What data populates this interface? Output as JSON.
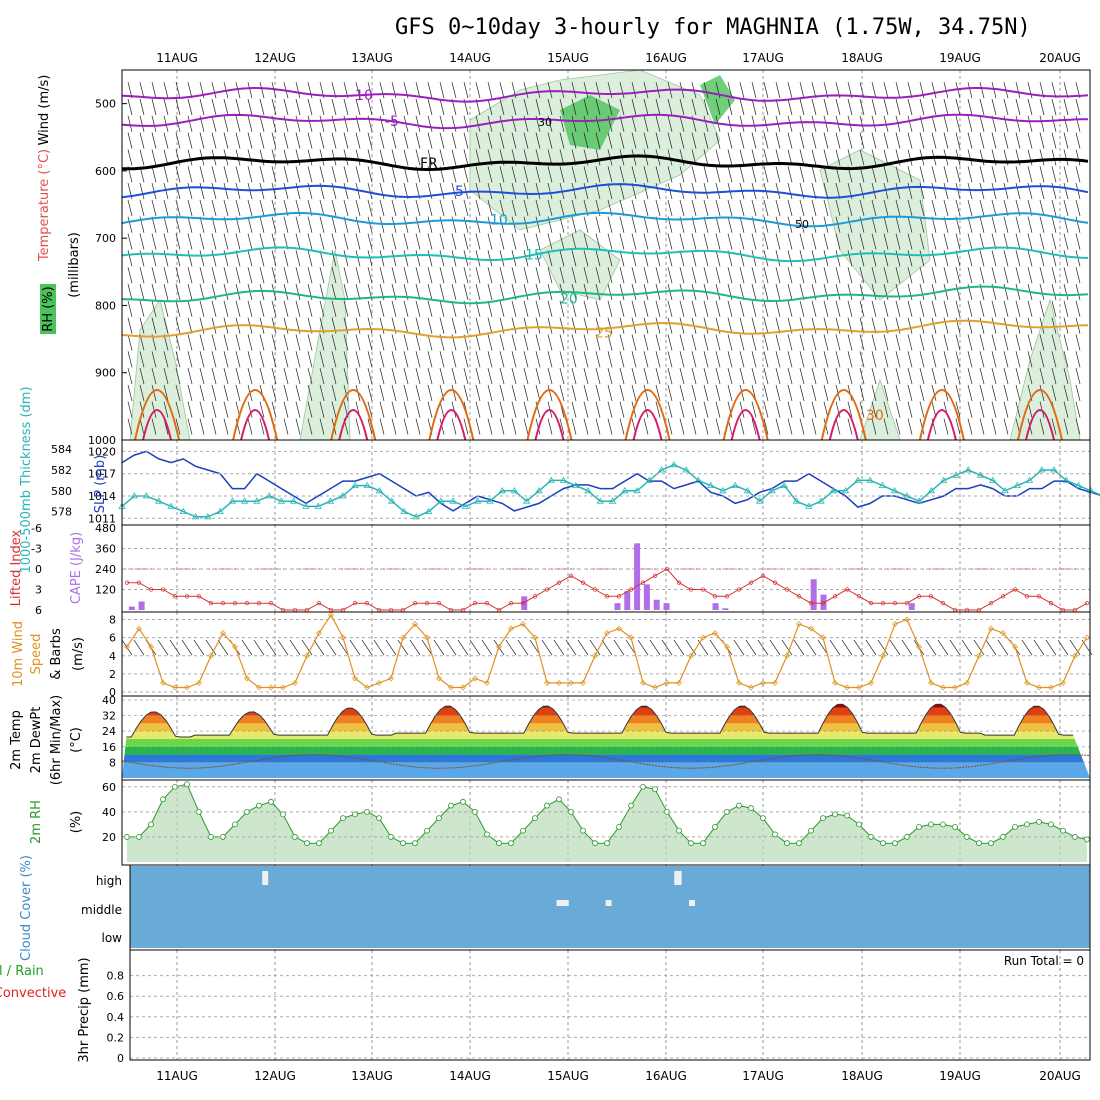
{
  "title": "GFS 0~10day 3-hourly for MAGHNIA (1.75W, 34.75N)",
  "dates": [
    "11AUG",
    "12AUG",
    "13AUG",
    "14AUG",
    "15AUG",
    "16AUG",
    "17AUG",
    "18AUG",
    "19AUG",
    "20AUG"
  ],
  "colors": {
    "rh_green": "#4cc35a",
    "rh_light": "#dcefdc",
    "freeze": "#000000",
    "t_minus10": "#9a1fbf",
    "t_minus5": "#9a1fbf",
    "t_5": "#1f4fd6",
    "t_10": "#1f9ad6",
    "t_15": "#1fbfb5",
    "t_20": "#21b58a",
    "t_25": "#e0a030",
    "t_30": "#e06a10",
    "t_35": "#d81a6a",
    "slp": "#1a3fbf",
    "thickness": "#2ab5b5",
    "lifted": "#d83030",
    "cape": "#b06ee8",
    "wind": "#e09020",
    "rh2m": "#2a9a2a",
    "cloud": "#6aaad6",
    "precip_green": "#20a020",
    "precip_red": "#e02020"
  },
  "chart_data": [
    {
      "id": "pressure_panel",
      "type": "heatmap",
      "ylabel_parts": [
        "Wind (m/s)",
        "Temperature (°C)",
        "RH (%)",
        "(millibars)"
      ],
      "yticks": [
        500,
        600,
        700,
        800,
        900,
        1000
      ],
      "ylim": [
        450,
        1000
      ],
      "isotherm_labels": [
        "-10",
        "-5",
        "FR",
        "5",
        "10",
        "15",
        "20",
        "25",
        "30"
      ],
      "rh_contour_labels": [
        "30",
        "50"
      ],
      "isotherms": [
        {
          "label": "-10",
          "level_mb": 487
        },
        {
          "label": "-5",
          "level_mb": 526
        },
        {
          "label": "FR",
          "level_mb": 588
        },
        {
          "label": "5",
          "level_mb": 630
        },
        {
          "label": "10",
          "level_mb": 672
        },
        {
          "label": "15",
          "level_mb": 724
        },
        {
          "label": "20",
          "level_mb": 790
        },
        {
          "label": "25",
          "level_mb": 840
        }
      ]
    },
    {
      "id": "slp_thickness",
      "type": "line",
      "ylabel_left": "1000-500mb Thickness (dm)",
      "ylabel_right": "SLP (mb)",
      "yticks_left": [
        578,
        580,
        582,
        584
      ],
      "yticks_right": [
        1011,
        1014,
        1017,
        1020
      ],
      "x_days": [
        0,
        0.125,
        0.25,
        0.375,
        0.5,
        0.625,
        0.75,
        0.875,
        1,
        1.125,
        1.25,
        1.375,
        1.5,
        1.625,
        1.75,
        1.875,
        2,
        2.125,
        2.25,
        2.375,
        2.5,
        2.625,
        2.75,
        2.875,
        3,
        3.125,
        3.25,
        3.375,
        3.5,
        3.625,
        3.75,
        3.875,
        4,
        4.125,
        4.25,
        4.375,
        4.5,
        4.625,
        4.75,
        4.875,
        5,
        5.125,
        5.25,
        5.375,
        5.5,
        5.625,
        5.75,
        5.875,
        6,
        6.125,
        6.25,
        6.375,
        6.5,
        6.625,
        6.75,
        6.875,
        7,
        7.125,
        7.25,
        7.375,
        7.5,
        7.625,
        7.75,
        7.875,
        8,
        8.125,
        8.25,
        8.375,
        8.5,
        8.625,
        8.75,
        8.875,
        9,
        9.125,
        9.25,
        9.375,
        9.5,
        9.625,
        9.75,
        9.875,
        10
      ],
      "series": [
        {
          "name": "SLP",
          "axis": "right",
          "values": [
            1018.5,
            1019.5,
            1020,
            1019,
            1018.5,
            1019,
            1018,
            1017.5,
            1017,
            1015,
            1015,
            1017,
            1016,
            1015,
            1014,
            1013,
            1014,
            1015,
            1016,
            1016,
            1016.5,
            1017,
            1016,
            1015,
            1014,
            1014.5,
            1013,
            1012,
            1013,
            1014,
            1013.5,
            1013,
            1012,
            1012.5,
            1013,
            1014,
            1015,
            1015.5,
            1015.5,
            1015,
            1015,
            1016,
            1017,
            1016,
            1016,
            1015,
            1015.5,
            1016,
            1014.5,
            1014,
            1013,
            1013.5,
            1014.5,
            1015,
            1016,
            1016,
            1017,
            1016,
            1015,
            1014,
            1012.5,
            1013,
            1014,
            1014,
            1013.5,
            1013,
            1013.5,
            1014,
            1015,
            1015,
            1015.5,
            1015,
            1014,
            1014,
            1015,
            1015,
            1016,
            1016,
            1015,
            1014.5,
            1014
          ]
        },
        {
          "name": "Thickness",
          "axis": "left",
          "values": [
            578.5,
            579.5,
            579.5,
            579,
            578.5,
            578,
            577.5,
            577.5,
            578,
            579,
            579,
            579,
            579.5,
            579,
            579,
            578.5,
            578.5,
            579,
            579.5,
            580.5,
            580.5,
            580,
            579,
            578,
            577.5,
            578,
            579,
            579,
            578.5,
            579,
            579,
            580,
            580,
            579,
            580,
            581,
            581,
            580.5,
            580,
            579,
            579,
            580,
            580,
            581,
            582,
            582.5,
            582,
            581,
            580.5,
            580,
            580.5,
            580,
            579,
            580,
            580.5,
            579,
            578.5,
            579,
            580,
            580,
            581,
            581,
            580.5,
            580,
            579.5,
            579,
            580,
            581,
            581.5,
            582,
            581.5,
            581,
            580,
            580.5,
            581,
            582,
            582,
            581,
            580.5,
            580,
            579.5
          ]
        }
      ]
    },
    {
      "id": "cape_li",
      "type": "bar",
      "ylabel_left": "Lifted Index",
      "ylabel_right": "CAPE (J/kg)",
      "yticks_left": [
        "-6",
        "-3",
        "0",
        "3",
        "6"
      ],
      "yticks_right": [
        "120",
        "240",
        "360",
        "480"
      ],
      "cape_bars": [
        {
          "day": 0.1,
          "value": 20
        },
        {
          "day": 0.2,
          "value": 50
        },
        {
          "day": 4.1,
          "value": 80
        },
        {
          "day": 5.05,
          "value": 40
        },
        {
          "day": 5.15,
          "value": 110
        },
        {
          "day": 5.25,
          "value": 390
        },
        {
          "day": 5.35,
          "value": 150
        },
        {
          "day": 5.45,
          "value": 60
        },
        {
          "day": 5.55,
          "value": 40
        },
        {
          "day": 6.05,
          "value": 40
        },
        {
          "day": 6.15,
          "value": 10
        },
        {
          "day": 7.05,
          "value": 180
        },
        {
          "day": 7.15,
          "value": 90
        },
        {
          "day": 8.05,
          "value": 40
        }
      ],
      "lifted_index": [
        2,
        2,
        3,
        3,
        4,
        4,
        4,
        5,
        5,
        5,
        5,
        5,
        5,
        6,
        6,
        6,
        5,
        6,
        6,
        5,
        5,
        6,
        6,
        6,
        5,
        5,
        5,
        6,
        6,
        5,
        5,
        6,
        5,
        5,
        4,
        3,
        2,
        1,
        2,
        3,
        4,
        4,
        3,
        2,
        1,
        0,
        2,
        3,
        3,
        4,
        4,
        3,
        2,
        1,
        2,
        3,
        4,
        5,
        5,
        4,
        3,
        4,
        5,
        5,
        5,
        5,
        4,
        4,
        5,
        6,
        6,
        6,
        5,
        4,
        3,
        4,
        4,
        5,
        6,
        6,
        5
      ]
    },
    {
      "id": "wind10m",
      "type": "line",
      "ylabel": "10m Wind Speed (m/s) & Barbs",
      "yticks": [
        0,
        2,
        4,
        6,
        8
      ],
      "ylim": [
        0,
        8.5
      ],
      "x_days": [
        0,
        0.125,
        0.25,
        0.375,
        0.5,
        0.625,
        0.75,
        0.875,
        1,
        1.125,
        1.25,
        1.375,
        1.5,
        1.625,
        1.75,
        1.875,
        2,
        2.125,
        2.25,
        2.375,
        2.5,
        2.625,
        2.75,
        2.875,
        3,
        3.125,
        3.25,
        3.375,
        3.5,
        3.625,
        3.75,
        3.875,
        4,
        4.125,
        4.25,
        4.375,
        4.5,
        4.625,
        4.75,
        4.875,
        5,
        5.125,
        5.25,
        5.375,
        5.5,
        5.625,
        5.75,
        5.875,
        6,
        6.125,
        6.25,
        6.375,
        6.5,
        6.625,
        6.75,
        6.875,
        7,
        7.125,
        7.25,
        7.375,
        7.5,
        7.625,
        7.75,
        7.875,
        8,
        8.125,
        8.25,
        8.375,
        8.5,
        8.625,
        8.75,
        8.875,
        9,
        9.125,
        9.25,
        9.375,
        9.5,
        9.625,
        9.75,
        9.875,
        10
      ],
      "values": [
        5,
        7,
        5,
        1,
        0.5,
        0.5,
        1,
        4,
        6.5,
        5,
        1.5,
        0.5,
        0.5,
        0.5,
        1,
        4,
        6.5,
        8.5,
        6,
        1.5,
        0.5,
        1,
        1.5,
        6,
        7.5,
        6,
        1.5,
        0.5,
        0.5,
        1.5,
        1,
        5,
        7,
        7.5,
        6,
        1,
        1,
        1,
        1,
        4,
        6.5,
        7,
        6,
        1,
        0.5,
        1,
        1,
        4,
        6,
        6.5,
        5,
        1,
        0.5,
        1,
        1,
        4,
        7.5,
        7,
        6,
        1,
        0.5,
        0.5,
        1,
        4,
        7.5,
        8,
        5,
        1,
        0.5,
        0.5,
        1,
        4,
        7,
        6.5,
        5,
        1,
        0.5,
        0.5,
        1,
        4,
        6
      ]
    },
    {
      "id": "temp2m",
      "type": "area",
      "ylabel": "2m Temp 2m DewPt (6hr Min/Max) (°C)",
      "yticks": [
        8,
        16,
        24,
        32,
        40
      ],
      "ylim": [
        0,
        41
      ],
      "max_temps": [
        34,
        34,
        36,
        37,
        37,
        37,
        37,
        38,
        38,
        37
      ],
      "min_temps": [
        21,
        22,
        22,
        23,
        23,
        23,
        23,
        23,
        23,
        22
      ],
      "dewpoint_range": [
        5,
        12
      ]
    },
    {
      "id": "rh2m",
      "type": "area",
      "ylabel": "2m RH (%)",
      "yticks": [
        20,
        40,
        60
      ],
      "ylim": [
        0,
        63
      ],
      "x_days": [
        0,
        0.125,
        0.25,
        0.375,
        0.5,
        0.625,
        0.75,
        0.875,
        1,
        1.125,
        1.25,
        1.375,
        1.5,
        1.625,
        1.75,
        1.875,
        2,
        2.125,
        2.25,
        2.375,
        2.5,
        2.625,
        2.75,
        2.875,
        3,
        3.125,
        3.25,
        3.375,
        3.5,
        3.625,
        3.75,
        3.875,
        4,
        4.125,
        4.25,
        4.375,
        4.5,
        4.625,
        4.75,
        4.875,
        5,
        5.125,
        5.25,
        5.375,
        5.5,
        5.625,
        5.75,
        5.875,
        6,
        6.125,
        6.25,
        6.375,
        6.5,
        6.625,
        6.75,
        6.875,
        7,
        7.125,
        7.25,
        7.375,
        7.5,
        7.625,
        7.75,
        7.875,
        8,
        8.125,
        8.25,
        8.375,
        8.5,
        8.625,
        8.75,
        8.875,
        9,
        9.125,
        9.25,
        9.375,
        9.5,
        9.625,
        9.75,
        9.875,
        10
      ],
      "values": [
        20,
        20,
        30,
        50,
        60,
        62,
        40,
        20,
        20,
        30,
        40,
        45,
        48,
        38,
        20,
        15,
        15,
        25,
        35,
        38,
        40,
        35,
        20,
        15,
        15,
        25,
        35,
        45,
        48,
        40,
        22,
        15,
        15,
        25,
        35,
        45,
        50,
        40,
        25,
        15,
        15,
        28,
        45,
        60,
        58,
        40,
        25,
        15,
        15,
        28,
        40,
        45,
        43,
        35,
        22,
        15,
        15,
        25,
        35,
        38,
        37,
        30,
        20,
        15,
        15,
        20,
        28,
        30,
        30,
        28,
        20,
        15,
        15,
        20,
        28,
        30,
        32,
        30,
        25,
        20,
        18
      ]
    },
    {
      "id": "cloud",
      "type": "bar",
      "ylabel": "Cloud Cover (%)",
      "levels": [
        "high",
        "middle",
        "low"
      ],
      "gaps": [
        {
          "level": "high",
          "day": 0.95,
          "width": 0.1
        },
        {
          "level": "middle",
          "day": 3.95,
          "width": 0.25
        },
        {
          "level": "middle",
          "day": 4.45,
          "width": 0.1
        },
        {
          "level": "high",
          "day": 5.15,
          "width": 0.15
        },
        {
          "level": "middle",
          "day": 5.3,
          "width": 0.1
        }
      ]
    },
    {
      "id": "precip",
      "type": "bar",
      "ylabel_parts": [
        "Total / Rain",
        "Convective",
        "3hr Precip (mm)"
      ],
      "yticks": [
        "0",
        "0.2",
        "0.4",
        "0.6",
        "0.8"
      ],
      "ylim": [
        0,
        1
      ],
      "run_total": "Run Total = 0",
      "values": []
    }
  ]
}
